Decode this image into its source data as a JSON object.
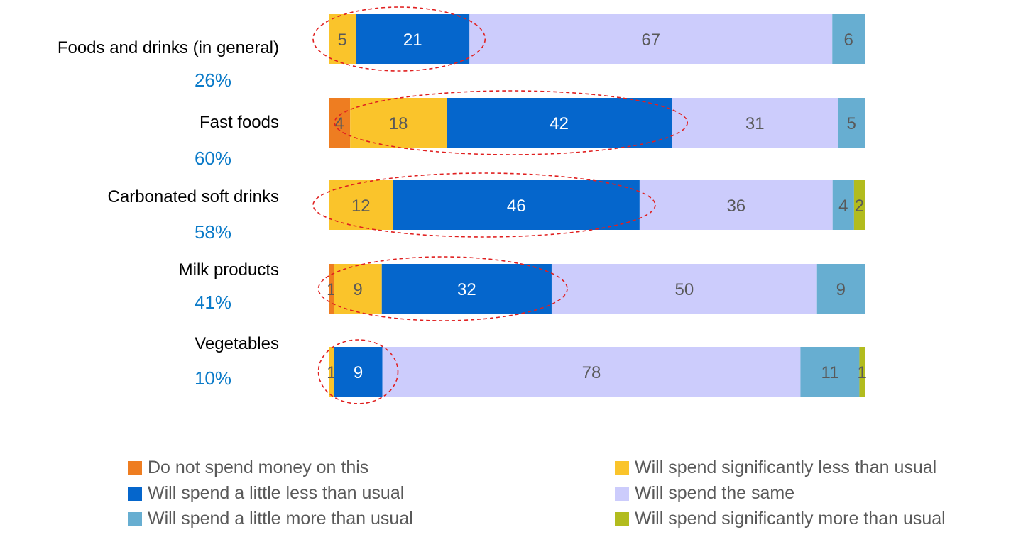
{
  "chart_data": {
    "type": "bar",
    "orientation": "horizontal",
    "stacked": true,
    "normalized": true,
    "categories": [
      "Foods and drinks (in general)",
      "Fast foods",
      "Carbonated soft drinks",
      "Milk products",
      "Vegetables"
    ],
    "category_percentages": [
      "26%",
      "60%",
      "58%",
      "41%",
      "10%"
    ],
    "series": [
      {
        "name": "Do not spend money on this",
        "color": "#ee7d21",
        "values": [
          0,
          4,
          0,
          1,
          0
        ],
        "labels": [
          "",
          "4",
          "",
          "1",
          ""
        ]
      },
      {
        "name": "Will spend significantly less than usual",
        "color": "#fac42b",
        "values": [
          5,
          18,
          12,
          9,
          1
        ],
        "labels": [
          "5",
          "18",
          "12",
          "9",
          "1"
        ]
      },
      {
        "name": "Will spend a little less than usual",
        "color": "#0566cc",
        "values": [
          21,
          42,
          46,
          32,
          9
        ],
        "labels": [
          "21",
          "42",
          "46",
          "32",
          "9"
        ]
      },
      {
        "name": "Will spend the same",
        "color": "#ccccfc",
        "values": [
          67,
          31,
          36,
          50,
          78
        ],
        "labels": [
          "67",
          "31",
          "36",
          "50",
          "78"
        ]
      },
      {
        "name": "Will spend a little more than usual",
        "color": "#67aed1",
        "values": [
          6,
          5,
          4,
          9,
          11
        ],
        "labels": [
          "6",
          "5",
          "4",
          "9",
          "11"
        ]
      },
      {
        "name": "Will spend significantly more than usual",
        "color": "#b2bc1e",
        "values": [
          0,
          0,
          2,
          0,
          1
        ],
        "labels": [
          "",
          "",
          "2",
          "",
          "1"
        ]
      }
    ],
    "highlights": [
      {
        "category": "Foods and drinks (in general)",
        "series": [
          "Will spend significantly less than usual",
          "Will spend a little less than usual"
        ]
      },
      {
        "category": "Fast foods",
        "series": [
          "Will spend significantly less than usual",
          "Will spend a little less than usual"
        ]
      },
      {
        "category": "Carbonated soft drinks",
        "series": [
          "Will spend significantly less than usual",
          "Will spend a little less than usual"
        ]
      },
      {
        "category": "Milk products",
        "series": [
          "Will spend significantly less than usual",
          "Will spend a little less than usual"
        ]
      },
      {
        "category": "Vegetables",
        "series": [
          "Will spend a little less than usual"
        ]
      }
    ],
    "legend_position": "bottom",
    "grid": false,
    "colors": {
      "percentage_text": "#0a7ac8",
      "highlight_ring": "#e02020",
      "label_dark": "#595959",
      "label_light": "#ffffff"
    }
  }
}
